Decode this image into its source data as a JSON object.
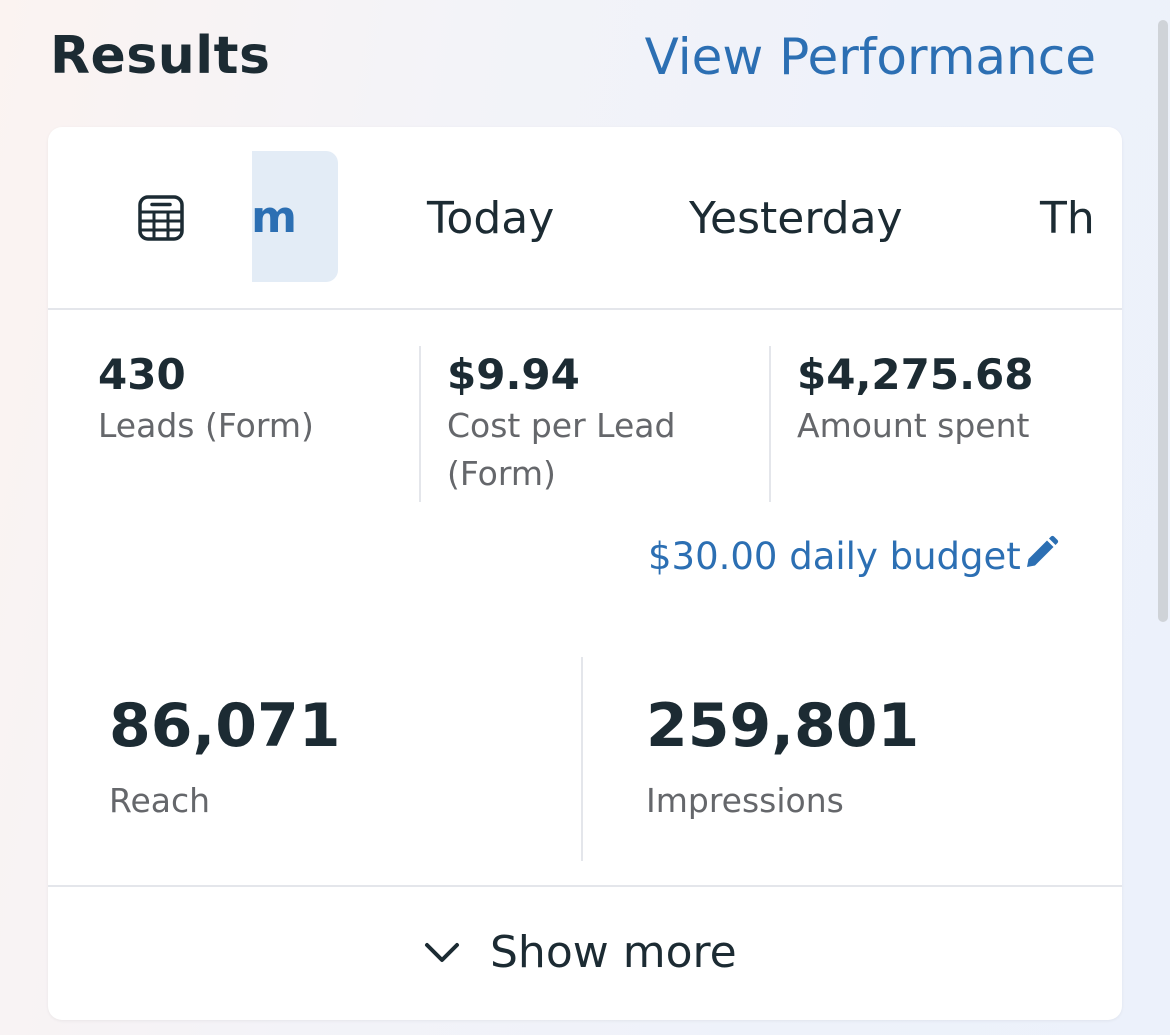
{
  "header": {
    "title": "Results",
    "view_performance": "View Performance"
  },
  "tabs": {
    "calendar_icon": "calendar-icon",
    "items": [
      {
        "label": "Maximum",
        "visible_text": "m",
        "active": true
      },
      {
        "label": "Today",
        "active": false
      },
      {
        "label": "Yesterday",
        "active": false
      },
      {
        "label": "Th",
        "active": false
      }
    ]
  },
  "metrics_top": [
    {
      "value": "430",
      "label": "Leads (Form)"
    },
    {
      "value": "$9.94",
      "label": "Cost per Lead (Form)"
    },
    {
      "value": "$4,275.68",
      "label": "Amount spent"
    }
  ],
  "budget": {
    "label": "$30.00 daily budget",
    "icon": "pencil-icon"
  },
  "metrics_bottom": [
    {
      "value": "86,071",
      "label": "Reach"
    },
    {
      "value": "259,801",
      "label": "Impressions"
    }
  ],
  "footer": {
    "show_more_label": "Show more",
    "icon": "chevron-down-icon"
  },
  "colors": {
    "accent": "#2c6fb3",
    "text_primary": "#1c2b33",
    "text_secondary": "#65676b",
    "active_tab_bg": "#e3ecf6"
  }
}
